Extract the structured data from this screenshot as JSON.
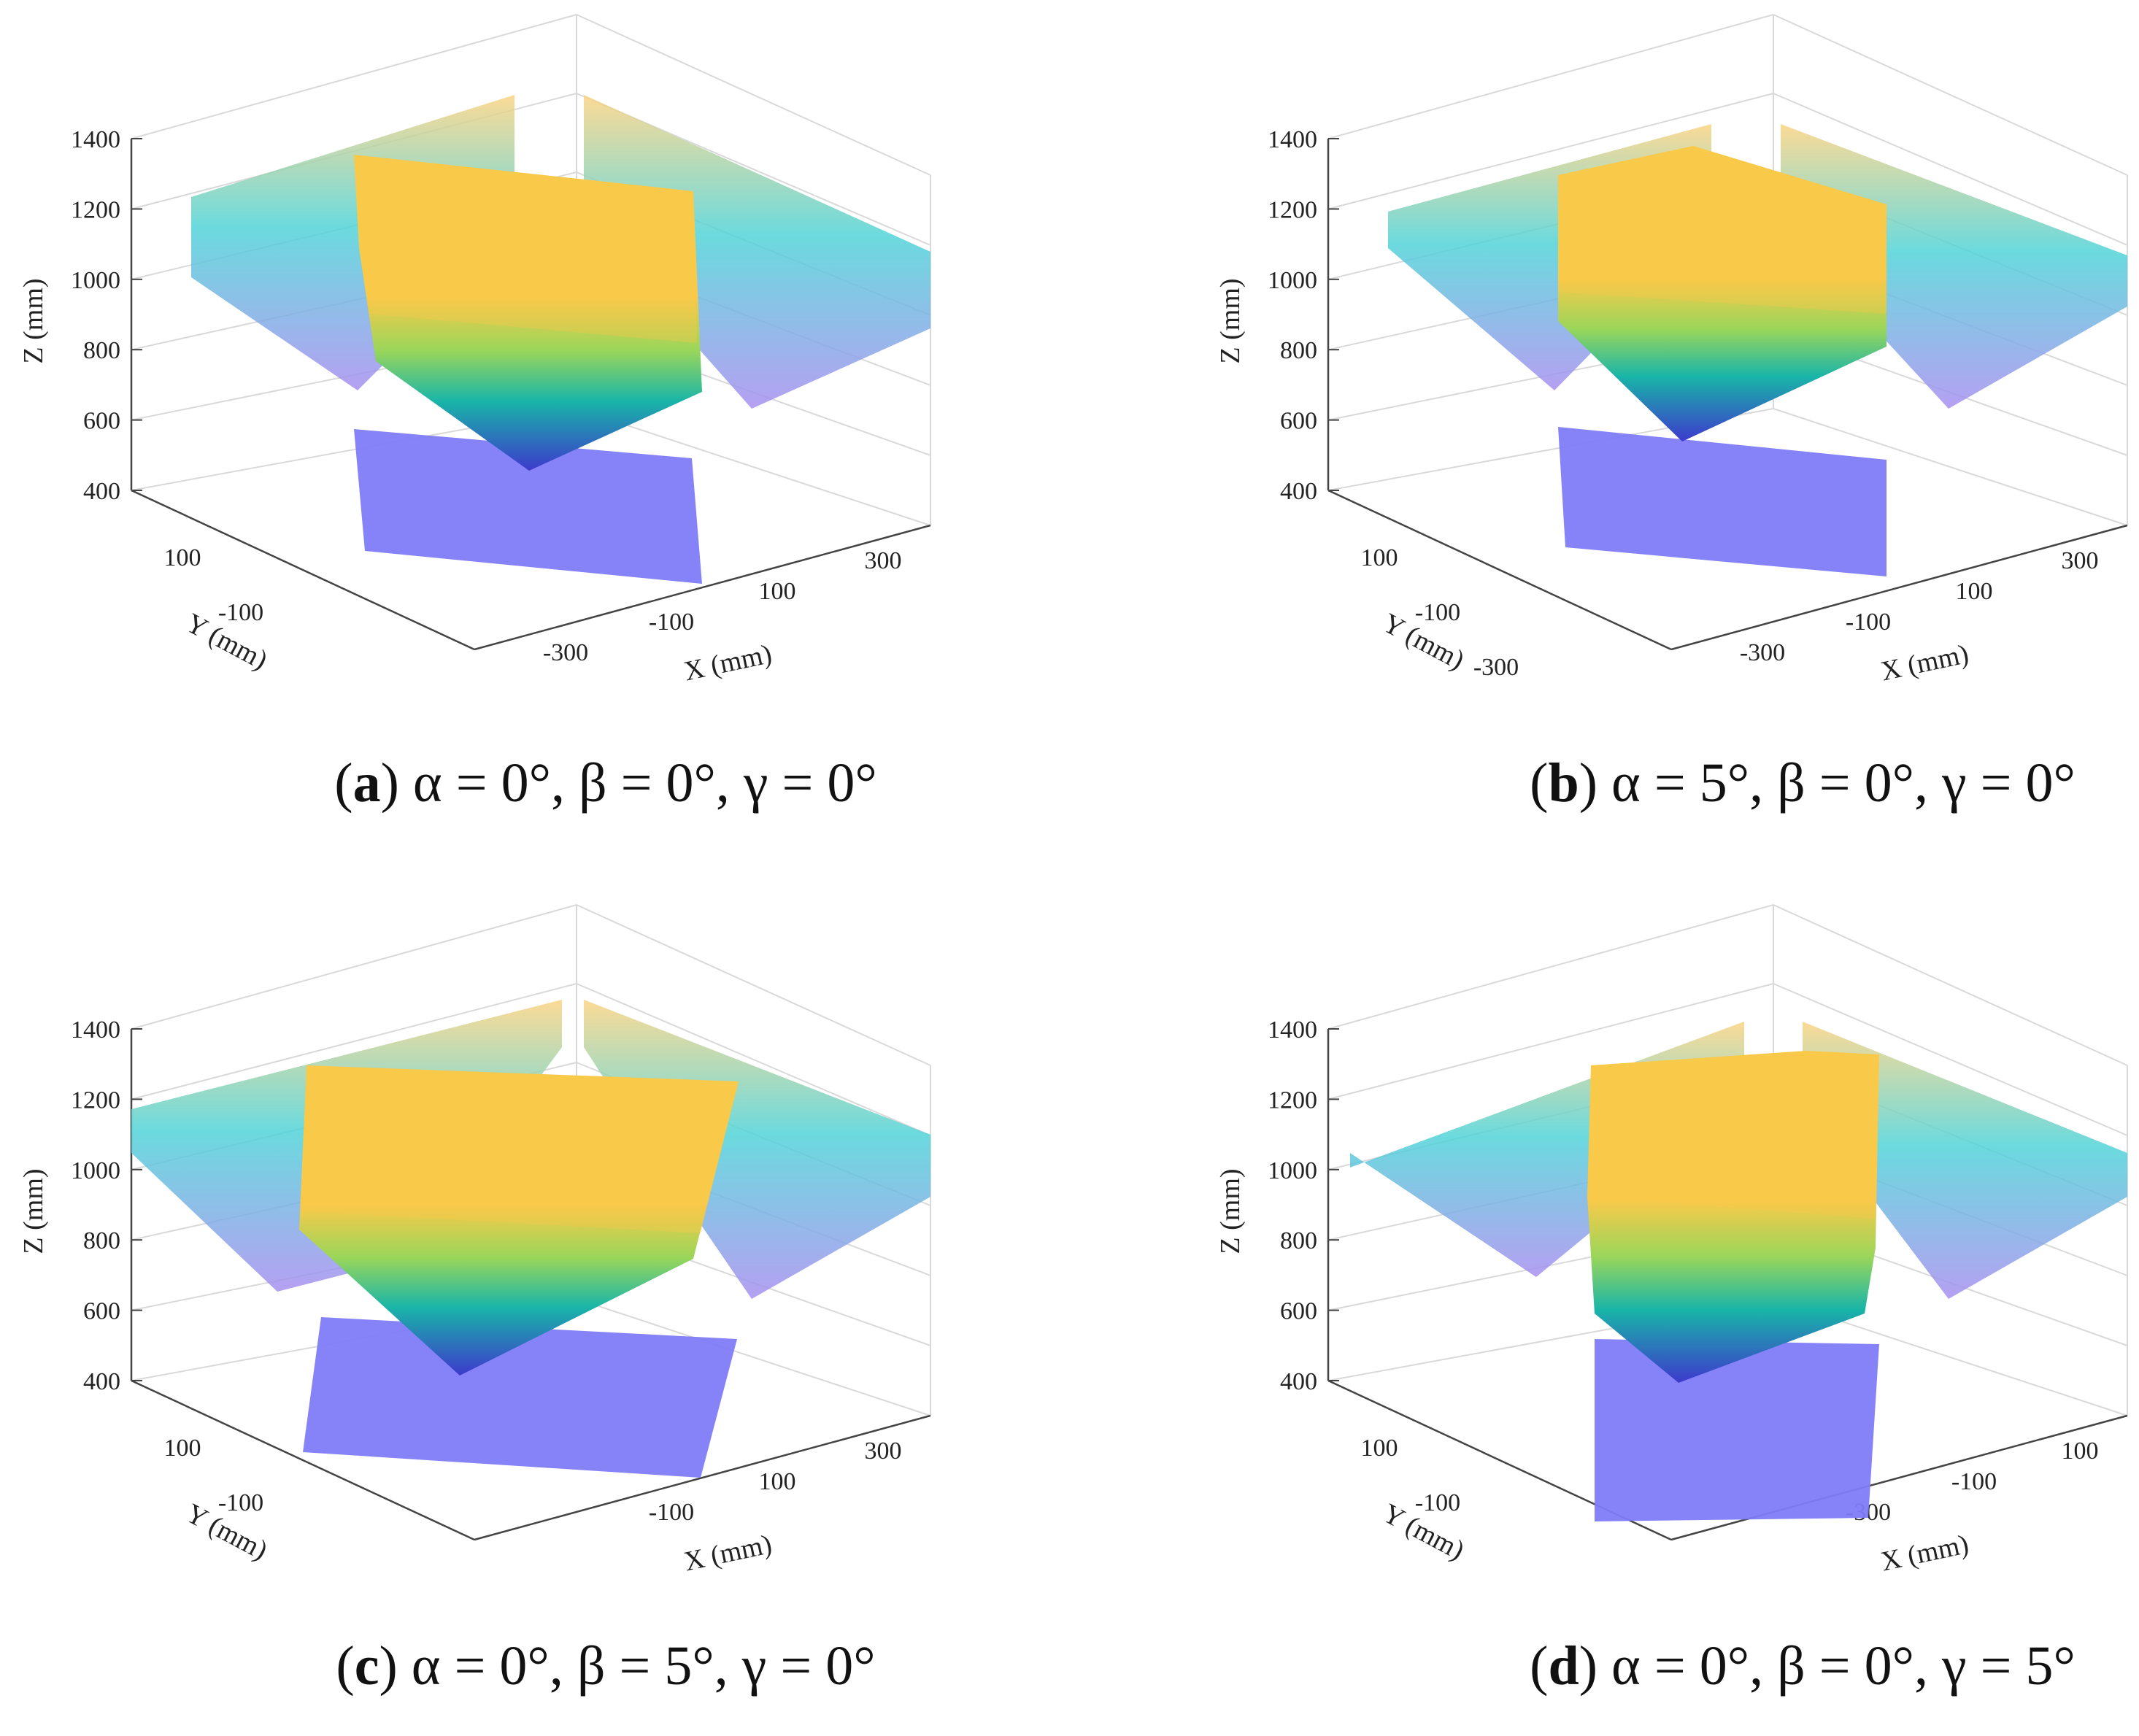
{
  "chart_data": [
    {
      "panel": "a",
      "type": "surface3d",
      "caption": {
        "letter": "a",
        "text": " α = 0°, β = 0°, γ = 0°"
      },
      "xlabel": "X (mm)",
      "ylabel": "Y (mm)",
      "zlabel": "Z (mm)",
      "zticks": [
        "1400",
        "1200",
        "1000",
        "800",
        "600",
        "400"
      ],
      "zlim": [
        400,
        1400
      ],
      "xticks": [
        "-300",
        "-100",
        "100",
        "300"
      ],
      "yticks": [
        "100",
        "-100"
      ],
      "params": {
        "alpha": 0,
        "beta": 0,
        "gamma": 0
      }
    },
    {
      "panel": "b",
      "type": "surface3d",
      "caption": {
        "letter": "b",
        "text": " α = 5°, β = 0°, γ = 0°"
      },
      "xlabel": "X (mm)",
      "ylabel": "Y (mm)",
      "zlabel": "Z (mm)",
      "zticks": [
        "1400",
        "1200",
        "1000",
        "800",
        "600",
        "400"
      ],
      "zlim": [
        400,
        1400
      ],
      "xticks": [
        "-300",
        "-100",
        "100",
        "300"
      ],
      "yticks": [
        "100",
        "-100",
        "-300"
      ],
      "params": {
        "alpha": 5,
        "beta": 0,
        "gamma": 0
      }
    },
    {
      "panel": "c",
      "type": "surface3d",
      "caption": {
        "letter": "c",
        "text": " α = 0°, β = 5°, γ = 0°"
      },
      "xlabel": "X (mm)",
      "ylabel": "Y (mm)",
      "zlabel": "Z (mm)",
      "zticks": [
        "1400",
        "1200",
        "1000",
        "800",
        "600",
        "400"
      ],
      "zlim": [
        400,
        1400
      ],
      "xticks": [
        "-100",
        "100",
        "300"
      ],
      "yticks": [
        "100",
        "-100"
      ],
      "params": {
        "alpha": 0,
        "beta": 5,
        "gamma": 0
      }
    },
    {
      "panel": "d",
      "type": "surface3d",
      "caption": {
        "letter": "d",
        "text": " α = 0°, β = 0°, γ = 5°"
      },
      "xlabel": "X (mm)",
      "ylabel": "Y (mm)",
      "zlabel": "Z (mm)",
      "zticks": [
        "1400",
        "1200",
        "1000",
        "800",
        "600",
        "400"
      ],
      "zlim": [
        400,
        1400
      ],
      "xticks": [
        "-300",
        "-100",
        "100"
      ],
      "yticks": [
        "100",
        "-100"
      ],
      "params": {
        "alpha": 0,
        "beta": 0,
        "gamma": 5
      }
    }
  ],
  "colors": {
    "workspace_top": "#f9c94a",
    "workspace_mid": "#9ad65a",
    "workspace_low": "#19b5a8",
    "workspace_bottom": "#3d3acc",
    "projection": "#7f7cf8",
    "side_top": "#fbd483",
    "side_mid": "#51d3d8",
    "side_bottom": "#a88ff0"
  }
}
